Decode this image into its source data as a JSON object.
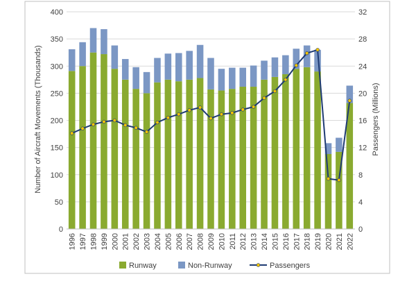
{
  "chart_data": {
    "type": "bar",
    "title": "",
    "categories": [
      "1996",
      "1997",
      "1998",
      "1999",
      "2000",
      "2001",
      "2002",
      "2003",
      "2004",
      "2005",
      "2006",
      "2007",
      "2008",
      "2009",
      "2010",
      "2011",
      "2012",
      "2013",
      "2014",
      "2015",
      "2016",
      "2017",
      "2018",
      "2019",
      "2020",
      "2021",
      "2022"
    ],
    "ylabel": "Number of Aircraft Movements (Thousands)",
    "y2label": "Passengers (Millions)",
    "ylim": [
      0,
      400
    ],
    "y2lim": [
      0,
      32
    ],
    "yticks": [
      "0",
      "50",
      "100",
      "150",
      "200",
      "250",
      "300",
      "350",
      "400"
    ],
    "y2ticks": [
      "0",
      "4",
      "8",
      "12",
      "16",
      "20",
      "24",
      "28",
      "32"
    ],
    "stacked": true,
    "grid": true,
    "legend_position": "bottom",
    "series": [
      {
        "name": "Runway",
        "type": "bar",
        "axis": "left",
        "color": "#8aaa30",
        "values": [
          291,
          300,
          325,
          322,
          295,
          275,
          258,
          250,
          270,
          275,
          272,
          275,
          278,
          257,
          255,
          258,
          262,
          262,
          275,
          280,
          285,
          295,
          298,
          290,
          138,
          142,
          232
        ]
      },
      {
        "name": "Non-Runway",
        "type": "bar",
        "axis": "left",
        "color": "#7b97c4",
        "values": [
          40,
          44,
          45,
          46,
          43,
          38,
          40,
          39,
          45,
          48,
          52,
          53,
          61,
          58,
          40,
          39,
          35,
          39,
          35,
          36,
          35,
          37,
          40,
          40,
          20,
          26,
          32
        ]
      },
      {
        "name": "Passengers",
        "type": "line",
        "axis": "right",
        "color": "#1f3b73",
        "marker_color": "#f2c400",
        "values": [
          14.1,
          14.8,
          15.4,
          15.8,
          16.0,
          15.3,
          14.9,
          14.3,
          15.7,
          16.4,
          16.9,
          17.5,
          17.9,
          16.3,
          16.9,
          17.1,
          17.6,
          18.0,
          19.3,
          20.3,
          22.0,
          24.1,
          25.9,
          26.4,
          7.4,
          7.2,
          18.9
        ]
      }
    ]
  }
}
